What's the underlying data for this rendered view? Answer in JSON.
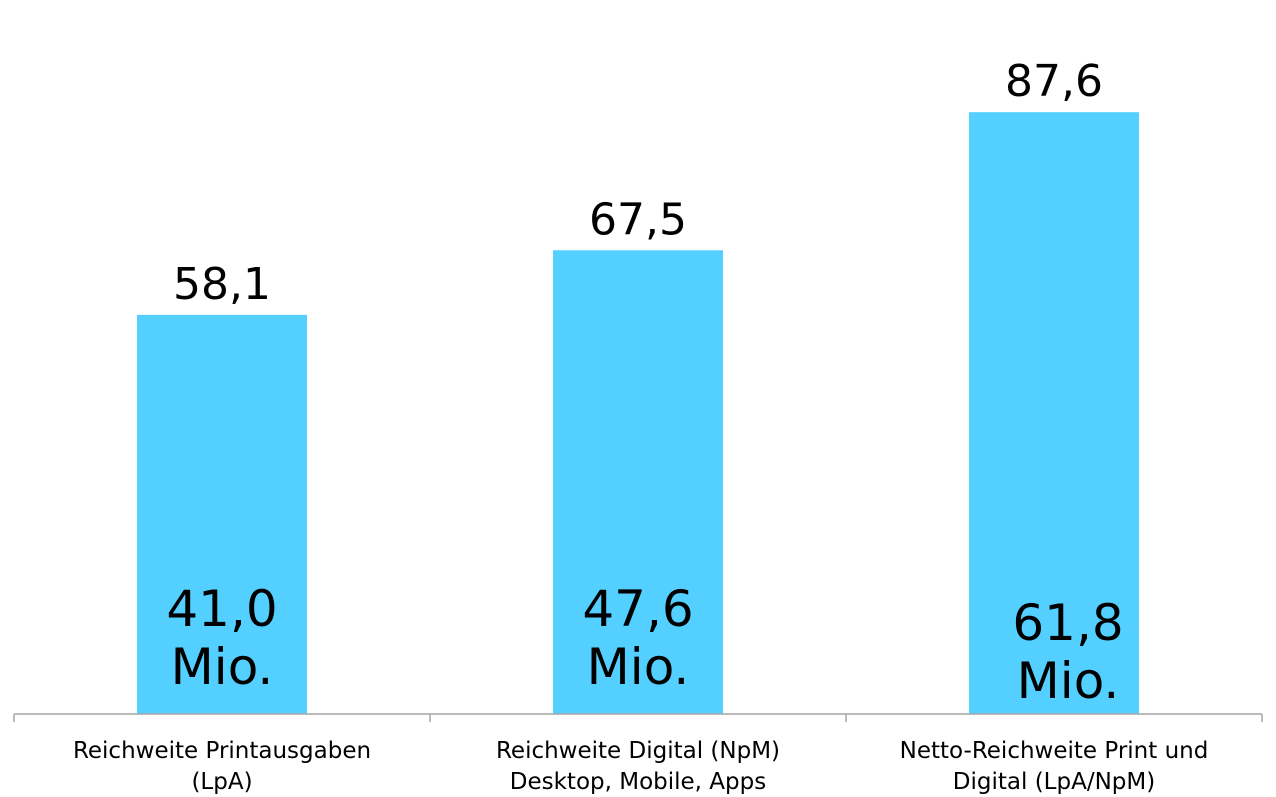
{
  "chart_data": {
    "type": "bar",
    "categories": [
      [
        "Reichweite Printausgaben",
        "(LpA)"
      ],
      [
        "Reichweite Digital (NpM)",
        "Desktop, Mobile, Apps"
      ],
      [
        "Netto-Reichweite Print und",
        "Digital (LpA/NpM)"
      ]
    ],
    "values": [
      58.1,
      67.5,
      87.6
    ],
    "value_labels": [
      "58,1",
      "67,5",
      "87,6"
    ],
    "inner_labels": [
      [
        "41,0",
        "Mio."
      ],
      [
        "47,6",
        "Mio."
      ],
      [
        "61,8",
        "Mio."
      ]
    ],
    "ylim": [
      0,
      100
    ],
    "grid": false,
    "legend": "none",
    "colors": {
      "bar": "#53d0ff",
      "axis": "#a6a6a6"
    }
  }
}
